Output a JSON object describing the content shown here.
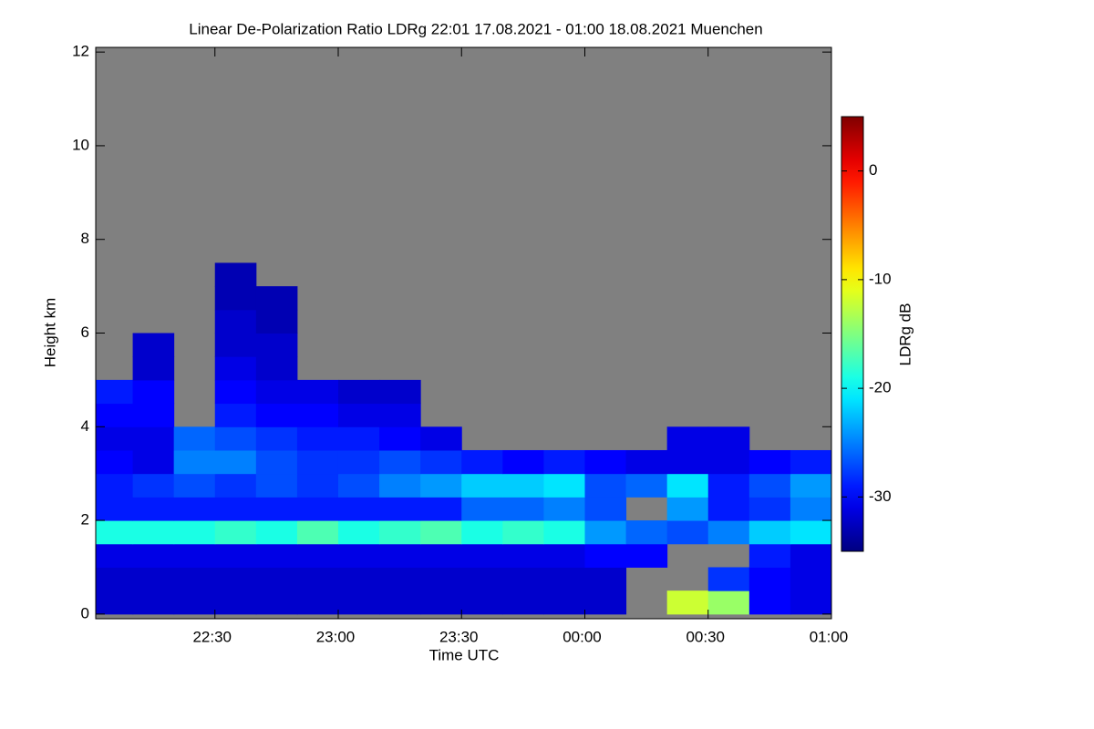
{
  "chart_data": {
    "type": "heatmap",
    "title": "Linear De-Polarization Ratio LDRg   22:01 17.08.2021 - 01:00 18.08.2021 Muenchen",
    "xlabel": "Time UTC",
    "ylabel": "Height km",
    "colorbar_label": "LDRg dB",
    "xlim": [
      1,
      180
    ],
    "xticks": [
      {
        "value": 30,
        "label": "22:30"
      },
      {
        "value": 60,
        "label": "23:00"
      },
      {
        "value": 90,
        "label": "23:30"
      },
      {
        "value": 120,
        "label": "00:00"
      },
      {
        "value": 150,
        "label": "00:30"
      },
      {
        "value": 180,
        "label": "01:00"
      }
    ],
    "ylim": [
      -0.1,
      12.1
    ],
    "yticks": [
      0,
      2,
      4,
      6,
      8,
      10,
      12
    ],
    "zlim": [
      -35,
      5
    ],
    "zticks": [
      -30,
      -20,
      -10,
      0
    ],
    "colormap": "jet",
    "background": "#808080",
    "x_bins": [
      1,
      10,
      20,
      30,
      40,
      50,
      60,
      70,
      80,
      90,
      100,
      110,
      120,
      130,
      140,
      150,
      160,
      170,
      180
    ],
    "y_bins": [
      0,
      0.5,
      1,
      1.5,
      2,
      2.5,
      3,
      3.5,
      4,
      4.5,
      5,
      5.5,
      6,
      6.5,
      7,
      7.5,
      8
    ],
    "z": [
      [
        -32,
        -32,
        -32,
        -32,
        -32,
        -32,
        -32,
        -32,
        -32,
        -32,
        -32,
        -32,
        -32,
        null,
        -12,
        -14,
        -30,
        -31
      ],
      [
        -32,
        -32,
        -32,
        -32,
        -32,
        -32,
        -32,
        -32,
        -32,
        -32,
        -32,
        -32,
        -32,
        null,
        null,
        -28,
        -30,
        -31
      ],
      [
        -31,
        -31,
        -31,
        -31,
        -31,
        -31,
        -31,
        -31,
        -31,
        -31,
        -31,
        -31,
        -30,
        -30,
        null,
        null,
        -29,
        -31
      ],
      [
        -19,
        -19,
        -19,
        -18,
        -19,
        -17,
        -19,
        -18,
        -17,
        -19,
        -18,
        -19,
        -24,
        -26,
        -27,
        -25,
        -22,
        -21
      ],
      [
        -29,
        -29,
        -29,
        -29,
        -29,
        -29,
        -29,
        -29,
        -29,
        -26,
        -26,
        -25,
        -27,
        null,
        -24,
        -29,
        -28,
        -25
      ],
      [
        -29,
        -28,
        -27,
        -28,
        -27,
        -28,
        -27,
        -25,
        -24,
        -22,
        -22,
        -21,
        -27,
        -26,
        -21,
        -29,
        -27,
        -24
      ],
      [
        -30,
        -31,
        -25,
        -25,
        -27,
        -28,
        -28,
        -27,
        -28,
        -29,
        -30,
        -29,
        -30,
        -31,
        -31,
        -31,
        -30,
        -29
      ],
      [
        -31,
        -31,
        -26,
        -27,
        -28,
        -29,
        -29,
        -30,
        -31,
        null,
        null,
        null,
        null,
        null,
        -31,
        -31,
        null,
        null
      ],
      [
        -30,
        -30,
        null,
        -29,
        -30,
        -30,
        -31,
        -31,
        null,
        null,
        null,
        null,
        null,
        null,
        null,
        null,
        null,
        null
      ],
      [
        -29,
        -30,
        null,
        -30,
        -31,
        -31,
        -32,
        -32,
        null,
        null,
        null,
        null,
        null,
        null,
        null,
        null,
        null,
        null
      ],
      [
        null,
        -32,
        null,
        -31,
        -32,
        null,
        null,
        null,
        null,
        null,
        null,
        null,
        null,
        null,
        null,
        null,
        null,
        null
      ],
      [
        null,
        -32,
        null,
        -32,
        -32,
        null,
        null,
        null,
        null,
        null,
        null,
        null,
        null,
        null,
        null,
        null,
        null,
        null
      ],
      [
        null,
        null,
        null,
        -32,
        -33,
        null,
        null,
        null,
        null,
        null,
        null,
        null,
        null,
        null,
        null,
        null,
        null,
        null
      ],
      [
        null,
        null,
        null,
        -33,
        -33,
        null,
        null,
        null,
        null,
        null,
        null,
        null,
        null,
        null,
        null,
        null,
        null,
        null
      ],
      [
        null,
        null,
        null,
        -33,
        null,
        null,
        null,
        null,
        null,
        null,
        null,
        null,
        null,
        null,
        null,
        null,
        null,
        null
      ],
      [
        null,
        null,
        null,
        null,
        null,
        null,
        null,
        null,
        null,
        null,
        null,
        null,
        null,
        null,
        null,
        null,
        null,
        null
      ]
    ]
  }
}
